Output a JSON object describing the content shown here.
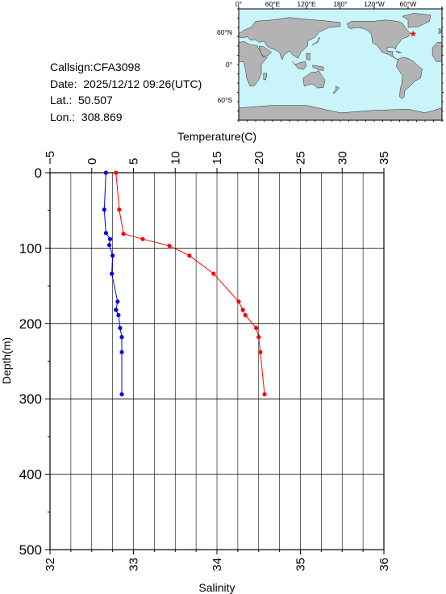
{
  "info": {
    "callsign": "Callsign:CFA3098",
    "date": "Date:  2025/12/12 09:26(UTC)",
    "lat": "Lat.:  50.507",
    "lon": "Lon.:  308.869"
  },
  "map": {
    "top_ticks": [
      "0°",
      "60°E",
      "120°E",
      "180°",
      "120°W",
      "60°W"
    ],
    "left_ticks": [
      "60°N",
      "0°",
      "60°S"
    ],
    "ocean_color": "#c8f4fa",
    "land_color": "#b3b3b3",
    "station_marker_color": "#ff0000",
    "station_lon": 308.869,
    "station_lat": 50.507
  },
  "chart_data": {
    "type": "line",
    "ylabel": "Depth(m)",
    "ylim": [
      0,
      500
    ],
    "y_ticks": [
      "0",
      "100",
      "200",
      "300",
      "400",
      "500"
    ],
    "y_reversed": true,
    "top_axis": {
      "label": "Temperature(C)",
      "range": [
        -5,
        35
      ],
      "ticks": [
        "−5",
        "0",
        "5",
        "10",
        "15",
        "20",
        "25",
        "30",
        "35"
      ]
    },
    "bottom_axis": {
      "label": "Salinity",
      "range": [
        32,
        36
      ],
      "ticks": [
        "32",
        "33",
        "34",
        "35",
        "36"
      ]
    },
    "grid": true,
    "series": [
      {
        "name": "",
        "axis": "top",
        "color": "#ff0000",
        "points": [
          {
            "x": 2.9,
            "y": 0
          },
          {
            "x": 3.3,
            "y": 49
          },
          {
            "x": 3.8,
            "y": 81
          },
          {
            "x": 6.1,
            "y": 88
          },
          {
            "x": 9.3,
            "y": 97
          },
          {
            "x": 11.7,
            "y": 110
          },
          {
            "x": 14.6,
            "y": 134
          },
          {
            "x": 17.6,
            "y": 171
          },
          {
            "x": 18.1,
            "y": 182
          },
          {
            "x": 18.4,
            "y": 189
          },
          {
            "x": 19.7,
            "y": 206
          },
          {
            "x": 20.0,
            "y": 218
          },
          {
            "x": 20.2,
            "y": 238
          },
          {
            "x": 20.7,
            "y": 294
          }
        ]
      },
      {
        "name": "",
        "axis": "bottom",
        "color": "#0000ff",
        "points": [
          {
            "x": 32.67,
            "y": 0
          },
          {
            "x": 32.65,
            "y": 49
          },
          {
            "x": 32.67,
            "y": 80
          },
          {
            "x": 32.72,
            "y": 88
          },
          {
            "x": 32.71,
            "y": 96
          },
          {
            "x": 32.75,
            "y": 110
          },
          {
            "x": 32.74,
            "y": 134
          },
          {
            "x": 32.81,
            "y": 171
          },
          {
            "x": 32.79,
            "y": 182
          },
          {
            "x": 32.82,
            "y": 189
          },
          {
            "x": 32.84,
            "y": 206
          },
          {
            "x": 32.86,
            "y": 218
          },
          {
            "x": 32.86,
            "y": 238
          },
          {
            "x": 32.86,
            "y": 294
          }
        ]
      }
    ]
  }
}
